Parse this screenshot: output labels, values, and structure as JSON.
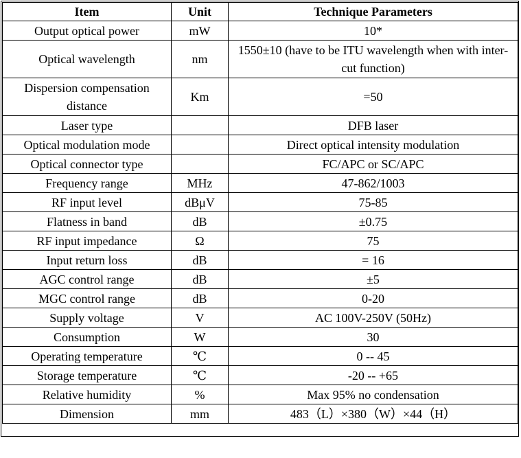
{
  "headers": {
    "item": "Item",
    "unit": "Unit",
    "params": "Technique Parameters"
  },
  "rows": [
    {
      "item": "Output optical power",
      "unit": "mW",
      "value": "10*"
    },
    {
      "item": "Optical wavelength",
      "unit": "nm",
      "value": "1550±10 (have to be ITU wavelength when with inter-cut function)"
    },
    {
      "item": "Dispersion compensation distance",
      "unit": "Km",
      "value": "=50"
    },
    {
      "item": "Laser type",
      "unit": "",
      "value": "DFB laser"
    },
    {
      "item": "Optical modulation mode",
      "unit": "",
      "value": "Direct optical intensity modulation"
    },
    {
      "item": "Optical connector type",
      "unit": "",
      "value": "FC/APC or SC/APC"
    },
    {
      "item": "Frequency range",
      "unit": "MHz",
      "value": "47-862/1003"
    },
    {
      "item": "RF input level",
      "unit": "dBμV",
      "value": "75-85"
    },
    {
      "item": "Flatness in band",
      "unit": "dB",
      "value": "±0.75"
    },
    {
      "item": "RF input impedance",
      "unit": "Ω",
      "value": "75"
    },
    {
      "item": "Input return loss",
      "unit": "dB",
      "value": "= 16"
    },
    {
      "item": "AGC control range",
      "unit": "dB",
      "value": "±5"
    },
    {
      "item": "MGC control range",
      "unit": "dB",
      "value": "0-20"
    },
    {
      "item": "Supply voltage",
      "unit": "V",
      "value": "AC 100V-250V (50Hz)"
    },
    {
      "item": "Consumption",
      "unit": "W",
      "value": "30"
    },
    {
      "item": "Operating temperature",
      "unit": "℃",
      "value": "0 -- 45"
    },
    {
      "item": "Storage temperature",
      "unit": "℃",
      "value": "-20 -- +65"
    },
    {
      "item": "Relative humidity",
      "unit": "%",
      "value": "Max 95% no condensation"
    },
    {
      "item": "Dimension",
      "unit": "mm",
      "value": "483（L）×380（W）×44（H）"
    }
  ]
}
